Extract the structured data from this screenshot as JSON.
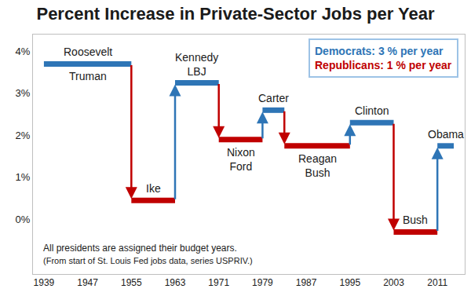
{
  "chart_data": {
    "type": "step",
    "title": "Percent Increase in Private-Sector Jobs per Year",
    "segments": [
      {
        "label_above": [
          "Roosevelt"
        ],
        "label_below": [
          "Truman"
        ],
        "start": 1939,
        "end": 1955,
        "value": 3.7,
        "color": "#2e75b6"
      },
      {
        "label_above": [
          "Ike"
        ],
        "label_below": [],
        "start": 1955,
        "end": 1963,
        "value": 0.45,
        "color": "#c00000"
      },
      {
        "label_above": [
          "Kennedy",
          "LBJ"
        ],
        "label_below": [],
        "start": 1963,
        "end": 1971,
        "value": 3.25,
        "color": "#2e75b6"
      },
      {
        "label_above": [],
        "label_below": [
          "Nixon",
          "Ford"
        ],
        "start": 1971,
        "end": 1979,
        "value": 1.9,
        "color": "#c00000"
      },
      {
        "label_above": [
          "Carter"
        ],
        "label_below": [],
        "start": 1979,
        "end": 1983,
        "value": 2.6,
        "color": "#2e75b6"
      },
      {
        "label_above": [],
        "label_below": [
          "Reagan",
          "Bush"
        ],
        "start": 1983,
        "end": 1995,
        "value": 1.75,
        "color": "#c00000"
      },
      {
        "label_above": [
          "Clinton"
        ],
        "label_below": [],
        "start": 1995,
        "end": 2003,
        "value": 2.3,
        "color": "#2e75b6"
      },
      {
        "label_above": [
          "Bush"
        ],
        "label_below": [],
        "start": 2003,
        "end": 2011,
        "value": -0.3,
        "color": "#c00000"
      },
      {
        "label_above": [
          "Obama"
        ],
        "label_below": [],
        "start": 2011,
        "end": 2014,
        "value": 1.75,
        "color": "#2e75b6"
      }
    ],
    "summary": [
      {
        "name": "Democrats:",
        "text": "3 % per year",
        "color": "#2e75b6"
      },
      {
        "name": "Republicans:",
        "text": "1 % per year",
        "color": "#c00000"
      }
    ],
    "note": [
      "All presidents are assigned their budget years.",
      "(From start of St. Louis Fed jobs data, series USPRIV.)"
    ],
    "xlim": [
      1937,
      2016
    ],
    "xticks": [
      1939,
      1947,
      1955,
      1963,
      1971,
      1979,
      1987,
      1995,
      2003,
      2011
    ],
    "ylim": [
      -1.3,
      4.4
    ],
    "yticks": [
      {
        "value": 0,
        "label": "0%"
      },
      {
        "value": 1,
        "label": "1%"
      },
      {
        "value": 2,
        "label": "2%"
      },
      {
        "value": 3,
        "label": "3%"
      },
      {
        "value": 4,
        "label": "4%"
      }
    ],
    "grid": false
  }
}
